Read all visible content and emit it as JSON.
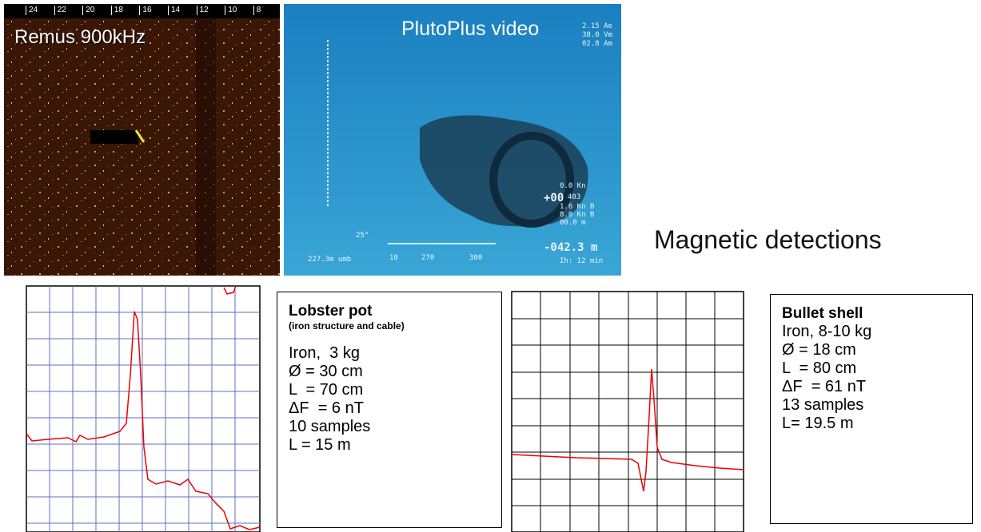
{
  "sonar": {
    "scale": [
      "24",
      "22",
      "20",
      "18",
      "16",
      "14",
      "12",
      "10",
      "8"
    ],
    "label": "Remus 900kHz"
  },
  "video": {
    "label": "PlutoPlus video",
    "overlay": [
      "2.15 Ae",
      "38.0 Vm",
      "02.8 Am",
      "0.0 Kn",
      "+00",
      "403",
      "1.6 Kn B",
      "8.0 Kn B",
      "00.0 m",
      "25°",
      "-042.3 m",
      "227.3m umb",
      "10",
      "270",
      "300",
      "Ih: 12 min"
    ]
  },
  "heading": "Magnetic detections",
  "lobster": {
    "title": "Lobster pot",
    "subtitle": "(iron structure and cable)",
    "lines": [
      "Iron,  3 kg",
      "Ø = 30 cm",
      "L  = 70 cm",
      "ΔF  = 6 nT",
      "10 samples",
      "L = 15 m"
    ]
  },
  "bullet": {
    "title": "Bullet shell",
    "lines": [
      "Iron, 8-10 kg",
      "Ø = 18 cm",
      "L  = 80 cm",
      "ΔF  = 61 nT",
      "13 samples",
      "L= 19.5 m"
    ]
  }
}
